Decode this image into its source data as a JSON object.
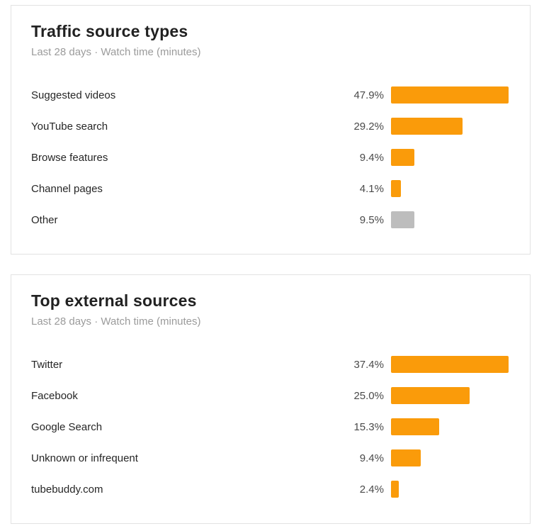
{
  "colors": {
    "accent": "#FA9B0A",
    "muted": "#BDBDBD",
    "card_border": "#e2e2e2",
    "title_text": "#212121",
    "subtitle_text": "#9b9b9b",
    "label_text": "#262626",
    "percent_text": "#4a4a4a"
  },
  "chart_data": [
    {
      "type": "bar",
      "orientation": "horizontal",
      "title": "Traffic source types",
      "subtitle": "Last 28 days · Watch time (minutes)",
      "period": "Last 28 days",
      "metric": "Watch time (minutes)",
      "unit": "%",
      "scaling": "bar lengths relative to max value in card",
      "categories": [
        "Suggested videos",
        "YouTube search",
        "Browse features",
        "Channel pages",
        "Other"
      ],
      "values": [
        47.9,
        29.2,
        9.4,
        4.1,
        9.5
      ],
      "value_labels": [
        "47.9%",
        "29.2%",
        "9.4%",
        "4.1%",
        "9.5%"
      ],
      "bar_color_keys": [
        "accent",
        "accent",
        "accent",
        "accent",
        "muted"
      ]
    },
    {
      "type": "bar",
      "orientation": "horizontal",
      "title": "Top external sources",
      "subtitle": "Last 28 days · Watch time (minutes)",
      "period": "Last 28 days",
      "metric": "Watch time (minutes)",
      "unit": "%",
      "scaling": "bar lengths relative to max value in card",
      "categories": [
        "Twitter",
        "Facebook",
        "Google Search",
        "Unknown or infrequent",
        "tubebuddy.com"
      ],
      "values": [
        37.4,
        25.0,
        15.3,
        9.4,
        2.4
      ],
      "value_labels": [
        "37.4%",
        "25.0%",
        "15.3%",
        "9.4%",
        "2.4%"
      ],
      "bar_color_keys": [
        "accent",
        "accent",
        "accent",
        "accent",
        "accent"
      ]
    }
  ]
}
